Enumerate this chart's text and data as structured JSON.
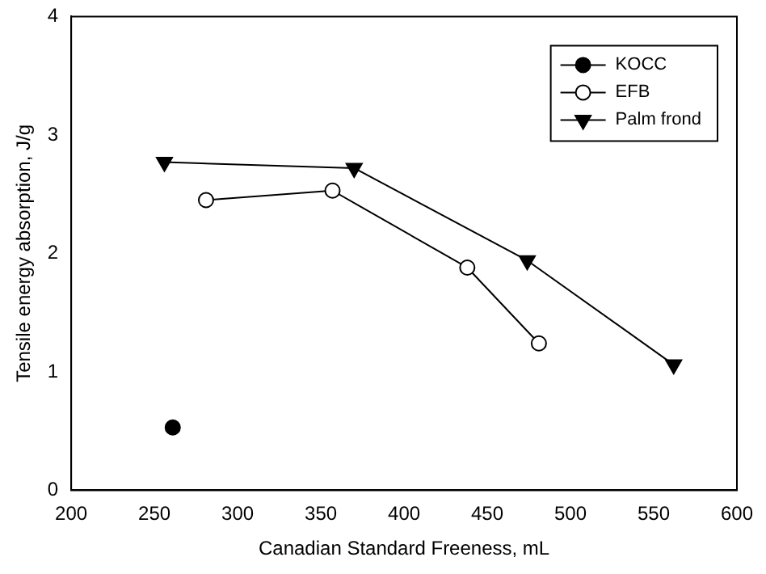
{
  "chart_data": {
    "type": "line",
    "xlabel": "Canadian Standard Freeness, mL",
    "ylabel": "Tensile energy absorption, J/g",
    "xlim": [
      200,
      600
    ],
    "xticks": [
      200,
      250,
      300,
      350,
      400,
      450,
      500,
      550,
      600
    ],
    "ylim": [
      0,
      4
    ],
    "yticks": [
      0,
      1,
      2,
      3,
      4
    ],
    "grid": false,
    "legend": "top right",
    "series": [
      {
        "name": "KOCC",
        "type": "scatter",
        "color": "#000000",
        "marker": "circle",
        "x": [
          261
        ],
        "values": [
          0.53
        ]
      },
      {
        "name": "EFB",
        "color": "#000000",
        "marker": "circle",
        "x": [
          281,
          357,
          438,
          481
        ],
        "values": [
          2.45,
          2.53,
          1.88,
          1.24
        ]
      },
      {
        "name": "Palm frond",
        "color": "#000000",
        "marker": "triangle",
        "x": [
          256,
          370,
          474,
          562
        ],
        "values": [
          2.77,
          2.72,
          1.94,
          1.06
        ]
      }
    ]
  }
}
